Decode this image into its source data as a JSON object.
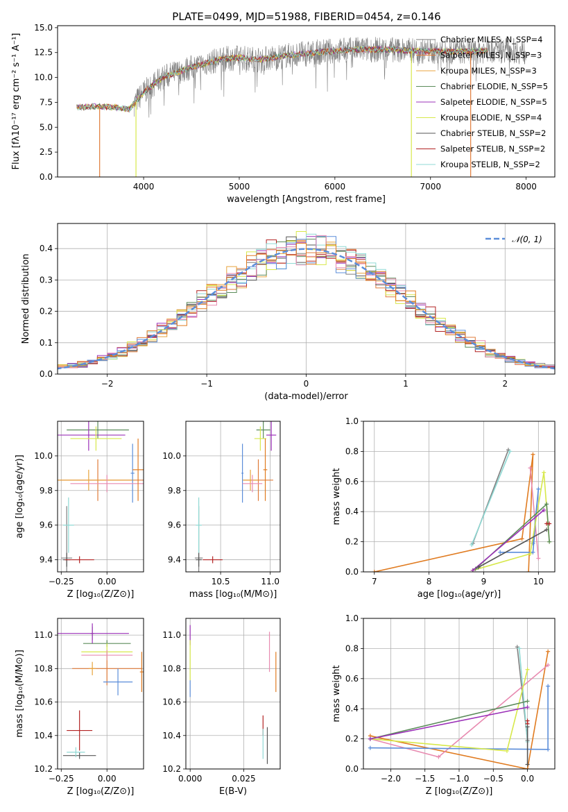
{
  "colors": {
    "chabrier_miles": "#7f7f7f",
    "salpeter_miles": "#e07b39",
    "kroupa_miles": "#e8a33c",
    "chabrier_elodie": "#5b8c5a",
    "salpeter_elodie": "#9b30b8",
    "kroupa_elodie": "#d7e84a",
    "chabrier_stelib": "#555555",
    "salpeter_stelib": "#b22222",
    "kroupa_stelib": "#8fd9d4",
    "blue": "#5b8dd9",
    "pink": "#e88ab0",
    "orange": "#e07b20",
    "normal_curve": "#5b8dd9"
  },
  "chart_data": [
    {
      "id": "spectrum",
      "type": "line",
      "title": "PLATE=0499, MJD=51988, FIBERID=0454, z=0.146",
      "xlabel": "wavelength [Angstrom, rest frame]",
      "ylabel": "Flux [fλ10⁻¹⁷ erg cm⁻² s⁻¹ A⁻¹]",
      "xlim": [
        3100,
        8300
      ],
      "ylim": [
        0,
        15.2
      ],
      "xticks": [
        "4000",
        "5000",
        "6000",
        "7000",
        "8000"
      ],
      "yticks": [
        "0.0",
        "2.5",
        "5.0",
        "7.5",
        "10.0",
        "12.5",
        "15.0"
      ],
      "grid": false,
      "legend_position": "top-right",
      "legend": [
        "Chabrier MILES, N_SSP=4",
        "Salpeter MILES, N_SSP=3",
        "Kroupa MILES, N_SSP=3",
        "Chabrier ELODIE, N_SSP=5",
        "Salpeter ELODIE, N_SSP=5",
        "Kroupa ELODIE, N_SSP=4",
        "Chabrier STELIB, N_SSP=2",
        "Salpeter STELIB, N_SSP=2",
        "Kroupa STELIB, N_SSP=2"
      ],
      "continuum": [
        [
          3300,
          7.0
        ],
        [
          3500,
          7.1
        ],
        [
          3700,
          7.0
        ],
        [
          3850,
          6.8
        ],
        [
          4000,
          8.5
        ],
        [
          4200,
          10.0
        ],
        [
          4500,
          11.0
        ],
        [
          4800,
          11.8
        ],
        [
          5000,
          12.0
        ],
        [
          5200,
          11.8
        ],
        [
          5500,
          12.2
        ],
        [
          5900,
          12.6
        ],
        [
          6200,
          12.8
        ],
        [
          6600,
          12.8
        ],
        [
          7000,
          12.6
        ],
        [
          7400,
          12.6
        ],
        [
          7800,
          12.8
        ],
        [
          8000,
          12.5
        ]
      ],
      "noise_start_wavelength": 3900,
      "noise_end_wavelength": 8000,
      "model_start_wavelength": 3300,
      "model_end_wavelength": 7600,
      "drops": [
        {
          "x": 3540,
          "series": "salpeter_miles"
        },
        {
          "x": 3920,
          "series": "kroupa_elodie"
        },
        {
          "x": 6800,
          "series": "kroupa_elodie"
        },
        {
          "x": 7420,
          "series": "salpeter_miles"
        }
      ]
    },
    {
      "id": "residuals",
      "type": "histogram",
      "xlabel": "(data-model)/error",
      "ylabel": "Normed distribution",
      "xlim": [
        -2.5,
        2.5
      ],
      "ylim": [
        0,
        0.48
      ],
      "xticks": [
        "−2",
        "−1",
        "0",
        "1",
        "2"
      ],
      "yticks": [
        "0.0",
        "0.1",
        "0.2",
        "0.3",
        "0.4"
      ],
      "grid": true,
      "legend_position": "top-right",
      "legend": [
        "𝒩(0, 1)"
      ],
      "bin_width": 0.1,
      "bin_start": -2.6,
      "series_jitter_amplitude": 0.04
    },
    {
      "id": "age_vs_Z",
      "type": "scatter",
      "xlabel": "Z [log₁₀(Z/Z⊙)]",
      "ylabel": "age  [log₁₀(age/yr)]",
      "xlim": [
        -0.27,
        0.2
      ],
      "ylim": [
        9.33,
        10.2
      ],
      "xticks": [
        "−0.25",
        "0.00"
      ],
      "xtick_values": [
        -0.25,
        0.0
      ],
      "yticks": [
        "9.4",
        "9.6",
        "9.8",
        "10.0"
      ],
      "ytick_values": [
        9.4,
        9.6,
        9.8,
        10.0
      ],
      "grid": true,
      "points": [
        {
          "series": "chabrier_miles",
          "x": -0.22,
          "y": 9.41,
          "xerr": 0.03,
          "yerr": 0.3
        },
        {
          "series": "salpeter_miles",
          "x": -0.05,
          "y": 9.86,
          "xerr": 0.25,
          "yerr": 0.12
        },
        {
          "series": "kroupa_miles",
          "x": -0.1,
          "y": 9.86,
          "xerr": 0.25,
          "yerr": 0.06
        },
        {
          "series": "chabrier_elodie",
          "x": -0.05,
          "y": 10.15,
          "xerr": 0.17,
          "yerr": 0.05
        },
        {
          "series": "salpeter_elodie",
          "x": -0.1,
          "y": 10.12,
          "xerr": 0.2,
          "yerr": 0.09
        },
        {
          "series": "kroupa_elodie",
          "x": -0.06,
          "y": 10.1,
          "xerr": 0.14,
          "yerr": 0.07
        },
        {
          "series": "chabrier_stelib",
          "x": -0.22,
          "y": 9.4,
          "xerr": 0.02,
          "yerr": 0.04
        },
        {
          "series": "salpeter_stelib",
          "x": -0.15,
          "y": 9.4,
          "xerr": 0.08,
          "yerr": 0.02
        },
        {
          "series": "kroupa_stelib",
          "x": -0.21,
          "y": 9.6,
          "xerr": 0.03,
          "yerr": 0.16
        },
        {
          "series": "blue",
          "x": 0.14,
          "y": 9.9,
          "xerr": 0.01,
          "yerr": 0.17
        },
        {
          "series": "pink",
          "x": 0.0,
          "y": 9.84,
          "xerr": 0.2,
          "yerr": 0.05
        },
        {
          "series": "orange",
          "x": 0.17,
          "y": 9.92,
          "xerr": 0.03,
          "yerr": 0.18
        }
      ]
    },
    {
      "id": "age_vs_mass",
      "type": "scatter",
      "xlabel": "mass [log₁₀(M/M⊙)]",
      "ylabel": "",
      "xlim": [
        10.15,
        11.1
      ],
      "ylim": [
        9.33,
        10.2
      ],
      "xticks": [
        "10.5",
        "11.0"
      ],
      "xtick_values": [
        10.5,
        11.0
      ],
      "yticks": [
        "9.4",
        "9.6",
        "9.8",
        "10.0"
      ],
      "ytick_values": [
        9.4,
        9.6,
        9.8,
        10.0
      ],
      "grid": true,
      "points": [
        {
          "series": "chabrier_miles",
          "x": 10.28,
          "y": 9.41,
          "xerr": 0.04,
          "yerr": 0.3
        },
        {
          "series": "salpeter_miles",
          "x": 10.88,
          "y": 9.86,
          "xerr": 0.15,
          "yerr": 0.12
        },
        {
          "series": "kroupa_miles",
          "x": 10.8,
          "y": 9.86,
          "xerr": 0.08,
          "yerr": 0.06
        },
        {
          "series": "chabrier_elodie",
          "x": 10.93,
          "y": 10.15,
          "xerr": 0.07,
          "yerr": 0.05
        },
        {
          "series": "salpeter_elodie",
          "x": 11.01,
          "y": 10.12,
          "xerr": 0.05,
          "yerr": 0.09
        },
        {
          "series": "kroupa_elodie",
          "x": 10.9,
          "y": 10.1,
          "xerr": 0.06,
          "yerr": 0.07
        },
        {
          "series": "chabrier_stelib",
          "x": 10.28,
          "y": 9.4,
          "xerr": 0.03,
          "yerr": 0.04
        },
        {
          "series": "salpeter_stelib",
          "x": 10.42,
          "y": 9.4,
          "xerr": 0.1,
          "yerr": 0.02
        },
        {
          "series": "kroupa_stelib",
          "x": 10.28,
          "y": 9.6,
          "xerr": 0.03,
          "yerr": 0.16
        },
        {
          "series": "blue",
          "x": 10.72,
          "y": 9.9,
          "xerr": 0.01,
          "yerr": 0.17
        },
        {
          "series": "pink",
          "x": 10.82,
          "y": 9.84,
          "xerr": 0.1,
          "yerr": 0.05
        },
        {
          "series": "orange",
          "x": 10.95,
          "y": 9.92,
          "xerr": 0.02,
          "yerr": 0.18
        }
      ]
    },
    {
      "id": "weight_vs_age",
      "type": "line",
      "xlabel": "age  [log₁₀(age/yr)]",
      "ylabel": "mass weight",
      "xlim": [
        6.8,
        10.3
      ],
      "ylim": [
        0,
        1.0
      ],
      "xticks": [
        "7",
        "8",
        "9",
        "10"
      ],
      "xtick_values": [
        7,
        8,
        9,
        10
      ],
      "yticks": [
        "0.0",
        "0.2",
        "0.4",
        "0.6",
        "0.8",
        "1.0"
      ],
      "ytick_values": [
        0,
        0.2,
        0.4,
        0.6,
        0.8,
        1.0
      ],
      "grid": true,
      "series": [
        {
          "series": "chabrier_miles",
          "x": [
            8.8,
            9.45
          ],
          "y": [
            0.19,
            0.81
          ]
        },
        {
          "series": "kroupa_stelib",
          "x": [
            8.78,
            9.48
          ],
          "y": [
            0.18,
            0.8
          ]
        },
        {
          "series": "orange",
          "x": [
            7.0,
            9.7,
            9.9,
            9.82
          ],
          "y": [
            0.0,
            0.22,
            0.78,
            0.0
          ]
        },
        {
          "series": "pink",
          "x": [
            9.85,
            10.0
          ],
          "y": [
            0.69,
            0.09
          ]
        },
        {
          "series": "blue",
          "x": [
            9.3,
            9.9,
            10.0,
            9.9
          ],
          "y": [
            0.13,
            0.13,
            0.55,
            0.19
          ]
        },
        {
          "series": "kroupa_elodie",
          "x": [
            8.8,
            9.85,
            10.1,
            10.2
          ],
          "y": [
            0.01,
            0.12,
            0.66,
            0.2
          ]
        },
        {
          "series": "chabrier_elodie",
          "x": [
            8.85,
            10.15,
            10.2
          ],
          "y": [
            0.02,
            0.45,
            0.2
          ]
        },
        {
          "series": "salpeter_elodie",
          "x": [
            8.8,
            10.1
          ],
          "y": [
            0.01,
            0.41
          ]
        },
        {
          "series": "salpeter_stelib",
          "x": [
            10.15,
            10.2
          ],
          "y": [
            0.32,
            0.32
          ]
        },
        {
          "series": "chabrier_stelib",
          "x": [
            8.9,
            10.15
          ],
          "y": [
            0.03,
            0.28
          ]
        }
      ]
    },
    {
      "id": "mass_vs_Z",
      "type": "scatter",
      "xlabel": "Z [log₁₀(Z/Z⊙)]",
      "ylabel": "mass [log₁₀(M/M⊙)]",
      "xlim": [
        -0.27,
        0.2
      ],
      "ylim": [
        10.2,
        11.1
      ],
      "xticks": [
        "−0.25",
        "0.00"
      ],
      "xtick_values": [
        -0.25,
        0.0
      ],
      "yticks": [
        "10.2",
        "10.4",
        "10.6",
        "10.8",
        "11.0"
      ],
      "ytick_values": [
        10.2,
        10.4,
        10.6,
        10.8,
        11.0
      ],
      "grid": true,
      "points": [
        {
          "series": "chabrier_miles",
          "x": -0.08,
          "y": 11.01,
          "xerr": 0.01,
          "yerr": 0.04
        },
        {
          "series": "salpeter_miles",
          "x": 0.0,
          "y": 10.8,
          "xerr": 0.19,
          "yerr": 0.1
        },
        {
          "series": "kroupa_miles",
          "x": -0.08,
          "y": 10.8,
          "xerr": 0.02,
          "yerr": 0.04
        },
        {
          "series": "chabrier_elodie",
          "x": 0.0,
          "y": 10.95,
          "xerr": 0.13,
          "yerr": 0.02
        },
        {
          "series": "salpeter_elodie",
          "x": -0.08,
          "y": 11.01,
          "xerr": 0.2,
          "yerr": 0.06
        },
        {
          "series": "kroupa_elodie",
          "x": 0.0,
          "y": 10.9,
          "xerr": 0.14,
          "yerr": 0.05
        },
        {
          "series": "chabrier_stelib",
          "x": -0.15,
          "y": 10.28,
          "xerr": 0.09,
          "yerr": 0.02
        },
        {
          "series": "salpeter_stelib",
          "x": -0.15,
          "y": 10.43,
          "xerr": 0.07,
          "yerr": 0.12
        },
        {
          "series": "kroupa_stelib",
          "x": -0.17,
          "y": 10.3,
          "xerr": 0.05,
          "yerr": 0.03
        },
        {
          "series": "blue",
          "x": 0.06,
          "y": 10.72,
          "xerr": 0.08,
          "yerr": 0.08
        },
        {
          "series": "pink",
          "x": 0.0,
          "y": 10.88,
          "xerr": 0.14,
          "yerr": 0.03
        },
        {
          "series": "orange",
          "x": 0.19,
          "y": 10.78,
          "xerr": 0.01,
          "yerr": 0.12
        }
      ]
    },
    {
      "id": "mass_vs_ebv",
      "type": "scatter",
      "xlabel": "E(B-V)",
      "ylabel": "",
      "xlim": [
        -0.002,
        0.042
      ],
      "ylim": [
        10.2,
        11.1
      ],
      "xticks": [
        "0.000",
        "0.025"
      ],
      "xtick_values": [
        0.0,
        0.025
      ],
      "yticks": [
        "10.2",
        "10.4",
        "10.6",
        "10.8",
        "11.0"
      ],
      "ytick_values": [
        10.2,
        10.4,
        10.6,
        10.8,
        11.0
      ],
      "grid": true,
      "points": [
        {
          "series": "salpeter_elodie",
          "x": 0.0,
          "y": 11.0,
          "xerr": 0,
          "yerr": 0.06
        },
        {
          "series": "kroupa_elodie",
          "x": 0.0,
          "y": 10.85,
          "xerr": 0,
          "yerr": 0.12
        },
        {
          "series": "blue",
          "x": 0.0,
          "y": 10.68,
          "xerr": 0,
          "yerr": 0.05
        },
        {
          "series": "pink",
          "x": 0.037,
          "y": 10.9,
          "xerr": 0,
          "yerr": 0.12
        },
        {
          "series": "orange",
          "x": 0.04,
          "y": 10.78,
          "xerr": 0,
          "yerr": 0.12
        },
        {
          "series": "salpeter_stelib",
          "x": 0.034,
          "y": 10.46,
          "xerr": 0,
          "yerr": 0.06
        },
        {
          "series": "kroupa_stelib",
          "x": 0.034,
          "y": 10.35,
          "xerr": 0,
          "yerr": 0.09
        },
        {
          "series": "chabrier_stelib",
          "x": 0.036,
          "y": 10.34,
          "xerr": 0,
          "yerr": 0.11
        }
      ]
    },
    {
      "id": "weight_vs_Z",
      "type": "line",
      "xlabel": "Z [log₁₀(Z/Z⊙)]",
      "ylabel": "mass weight",
      "xlim": [
        -2.4,
        0.4
      ],
      "ylim": [
        0,
        1.0
      ],
      "xticks": [
        "−2.0",
        "−1.5",
        "−1.0",
        "−0.5",
        "0.0"
      ],
      "xtick_values": [
        -2.0,
        -1.5,
        -1.0,
        -0.5,
        0.0
      ],
      "yticks": [
        "0.0",
        "0.2",
        "0.4",
        "0.6",
        "0.8",
        "1.0"
      ],
      "ytick_values": [
        0,
        0.2,
        0.4,
        0.6,
        0.8,
        1.0
      ],
      "grid": true,
      "series": [
        {
          "series": "chabrier_miles",
          "x": [
            -0.15,
            0.0
          ],
          "y": [
            0.81,
            0.19
          ]
        },
        {
          "series": "kroupa_stelib",
          "x": [
            -0.12,
            0.0
          ],
          "y": [
            0.8,
            0.18
          ]
        },
        {
          "series": "orange",
          "x": [
            0.3,
            -0.0,
            -2.3,
            0.0
          ],
          "y": [
            0.78,
            0.0,
            0.22,
            0.0
          ]
        },
        {
          "series": "pink",
          "x": [
            0.3,
            -1.3,
            -2.3
          ],
          "y": [
            0.69,
            0.08,
            0.2
          ]
        },
        {
          "series": "blue",
          "x": [
            0.3,
            0.3,
            -2.3
          ],
          "y": [
            0.55,
            0.13,
            0.14
          ]
        },
        {
          "series": "kroupa_elodie",
          "x": [
            0.0,
            -0.3,
            -2.3
          ],
          "y": [
            0.66,
            0.12,
            0.2
          ]
        },
        {
          "series": "chabrier_elodie",
          "x": [
            0.0,
            -2.3
          ],
          "y": [
            0.45,
            0.2
          ]
        },
        {
          "series": "salpeter_elodie",
          "x": [
            0.0,
            -2.3
          ],
          "y": [
            0.41,
            0.2
          ]
        },
        {
          "series": "salpeter_stelib",
          "x": [
            0.0,
            0.0
          ],
          "y": [
            0.32,
            0.3
          ]
        },
        {
          "series": "chabrier_stelib",
          "x": [
            0.0,
            0.0
          ],
          "y": [
            0.28,
            0.03
          ]
        }
      ]
    }
  ]
}
